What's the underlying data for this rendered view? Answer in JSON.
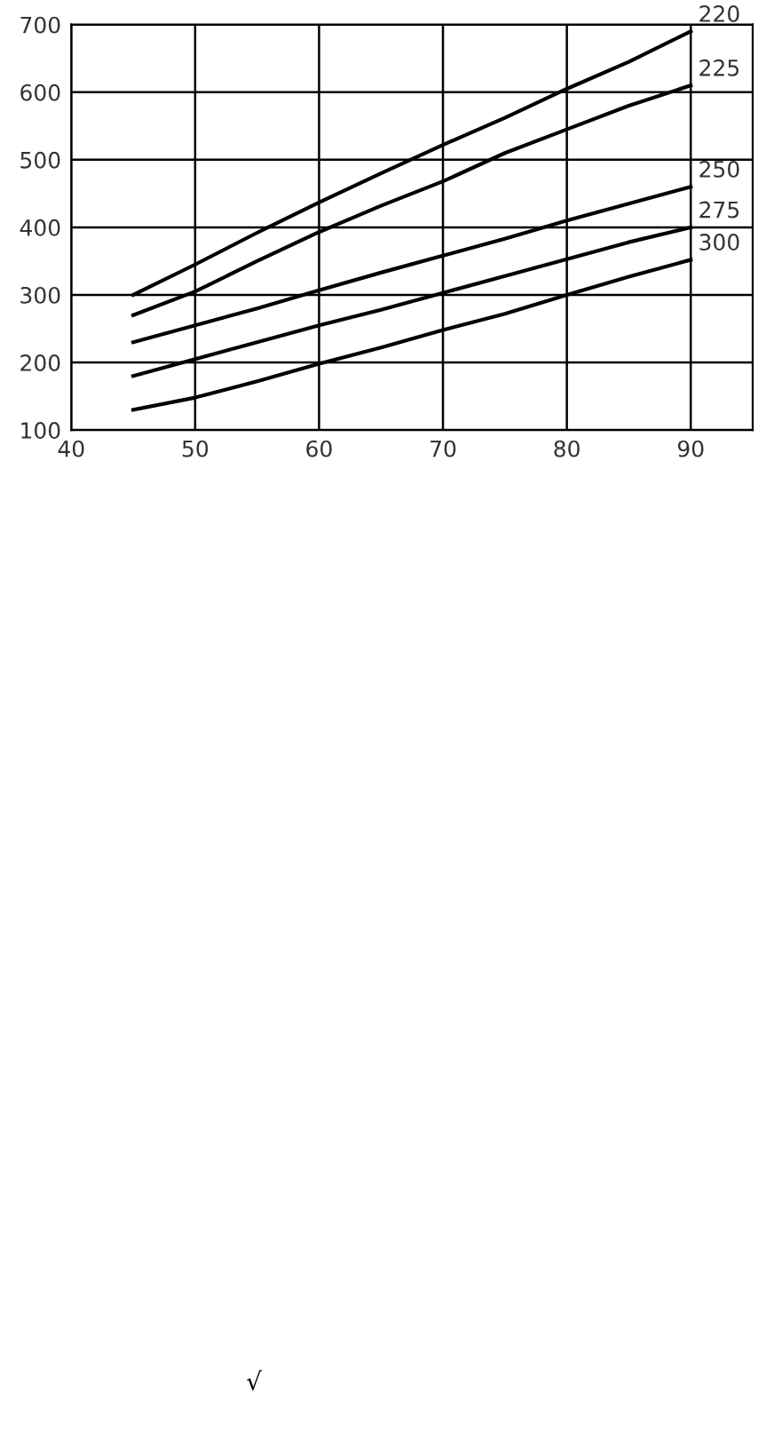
{
  "chart_data": {
    "type": "line",
    "x": [
      45,
      50,
      55,
      60,
      65,
      70,
      75,
      80,
      85,
      90
    ],
    "series": [
      {
        "name": "220",
        "color": "#000000",
        "values": [
          300,
          345,
          392,
          437,
          480,
          522,
          562,
          605,
          645,
          690
        ]
      },
      {
        "name": "225",
        "color": "#000000",
        "values": [
          270,
          305,
          350,
          393,
          432,
          468,
          510,
          545,
          580,
          610
        ]
      },
      {
        "name": "250",
        "color": "#000000",
        "values": [
          230,
          255,
          280,
          307,
          333,
          358,
          383,
          410,
          435,
          460
        ]
      },
      {
        "name": "275",
        "color": "#000000",
        "values": [
          180,
          205,
          230,
          255,
          278,
          303,
          328,
          353,
          378,
          400
        ]
      },
      {
        "name": "300",
        "color": "#000000",
        "values": [
          130,
          148,
          172,
          198,
          222,
          248,
          272,
          300,
          327,
          352
        ]
      }
    ],
    "xlim": [
      40,
      95
    ],
    "xticks": [
      40,
      50,
      60,
      70,
      80,
      90
    ],
    "ylim": [
      100,
      700
    ],
    "yticks": [
      100,
      200,
      300,
      400,
      500,
      600,
      700
    ],
    "grid": true,
    "legend": false,
    "marker": "none",
    "line_style": "solid",
    "annotations": [
      "√"
    ]
  }
}
